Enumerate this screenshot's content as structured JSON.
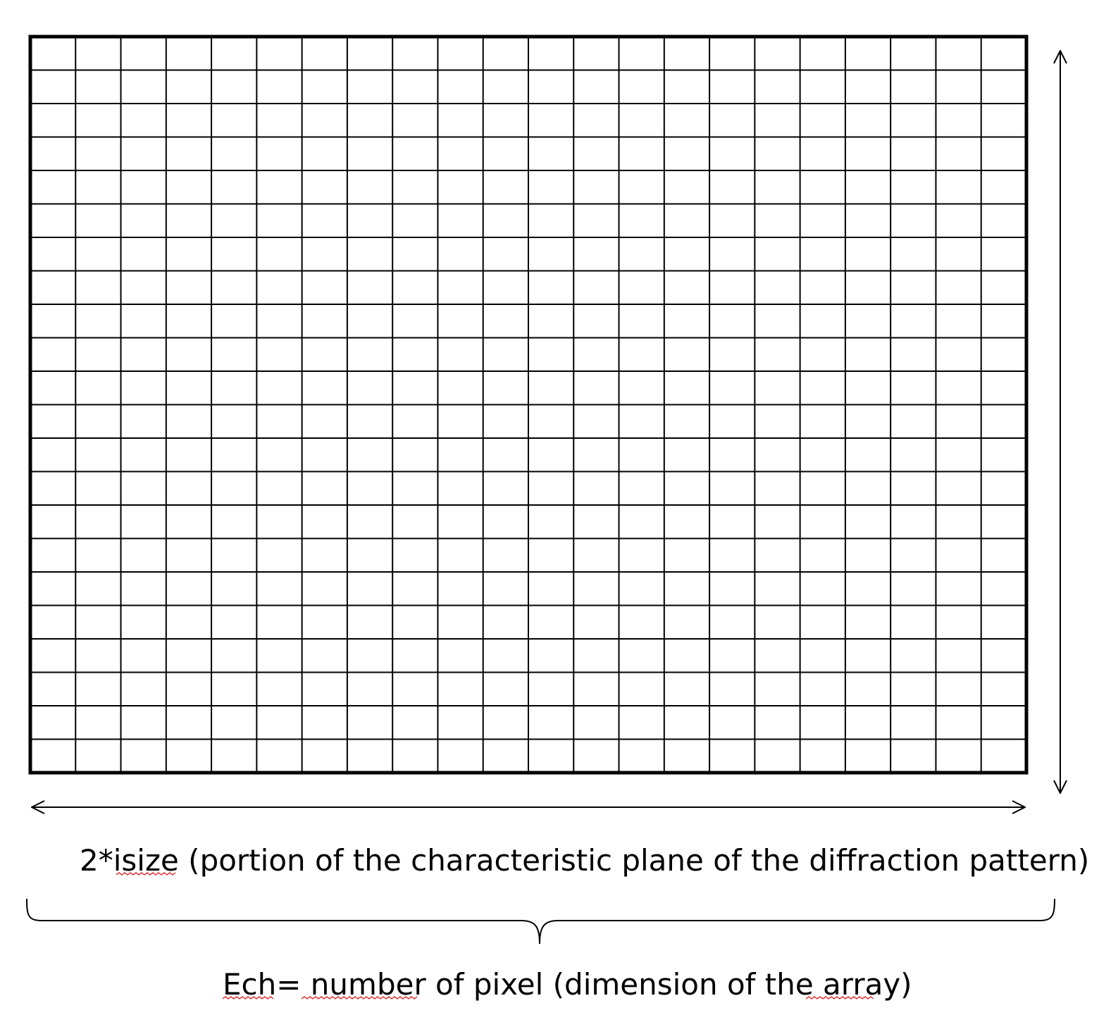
{
  "diagram": {
    "grid": {
      "columns": 22,
      "rows": 22,
      "line_color": "#000000"
    },
    "width_label": "2*isize (portion of the characteristic plane of the diffraction pattern)",
    "array_label": "Ech= number of pixel (dimension of the array)",
    "spellcheck_color": "#e02020"
  }
}
